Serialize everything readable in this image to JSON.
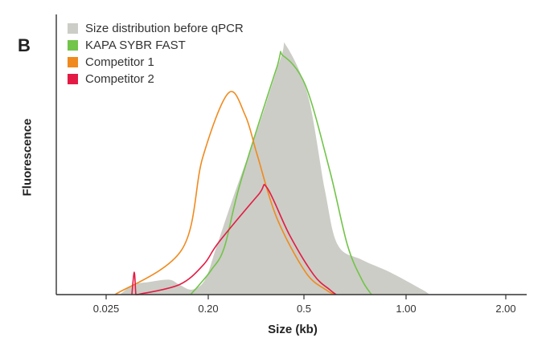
{
  "panel_label": "B",
  "chart_data": {
    "type": "area",
    "xlabel": "Size (kb)",
    "ylabel": "Fluorescence",
    "x_ticks": [
      "0.025",
      "0.20",
      "0.5",
      "1.00",
      "2.00"
    ],
    "y_ticks": [],
    "grid": false,
    "legend_position": "top-left",
    "series": [
      {
        "name": "Size distribution before qPCR",
        "kind": "area",
        "color": "#cccdc6",
        "x": [
          "0.025",
          "0.025",
          "0.025",
          "0.20",
          "0.20",
          "0.20",
          "0.20",
          "0.20",
          "0.20",
          "0.20",
          "0.5",
          "0.5",
          "0.5",
          "0.5",
          "0.5",
          "0.5",
          "0.5",
          "1.00",
          "1.00"
        ],
        "y": [
          0,
          4,
          5,
          6,
          4,
          2,
          6,
          19,
          40,
          68,
          96,
          100,
          80,
          42,
          20,
          14,
          9,
          2,
          0
        ]
      },
      {
        "name": "KAPA SYBR FAST",
        "kind": "line",
        "color": "#72c44a",
        "x": [
          "0.20",
          "0.20",
          "0.20",
          "0.20",
          "0.20",
          "0.5",
          "0.5",
          "0.5",
          "0.5",
          "0.5",
          "0.5",
          "0.5"
        ],
        "y": [
          0,
          4,
          10,
          19,
          45,
          92,
          96,
          84,
          50,
          20,
          6,
          0
        ]
      },
      {
        "name": "Competitor 1",
        "kind": "line",
        "color": "#f08a1e",
        "x": [
          "0.025",
          "0.20",
          "0.20",
          "0.20",
          "0.20",
          "0.20",
          "0.20",
          "0.5",
          "0.5",
          "0.5"
        ],
        "y": [
          0,
          18,
          55,
          81,
          72,
          56,
          31,
          9,
          2,
          0
        ]
      },
      {
        "name": "Competitor 2",
        "kind": "line",
        "color": "#e31b44",
        "x": [
          "0.025",
          "0.025",
          "0.025",
          "0.025",
          "0.20",
          "0.20",
          "0.20",
          "0.5",
          "0.5",
          "0.5",
          "0.5",
          "0.5",
          "0.5"
        ],
        "y": [
          0,
          9,
          0,
          0,
          4,
          12,
          21,
          40,
          43,
          24,
          8,
          2,
          0
        ]
      }
    ]
  }
}
